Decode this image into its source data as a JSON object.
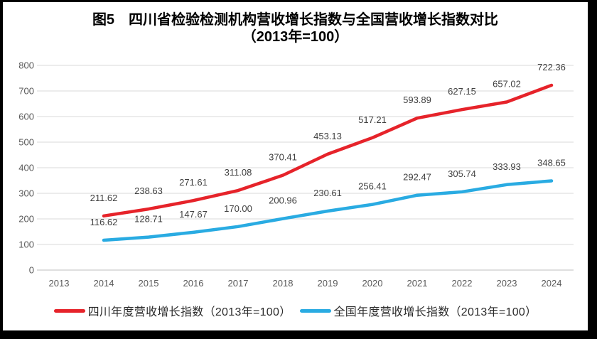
{
  "header": {
    "title_line1": "图5　四川省检验检测机构营收增长指数与全国营收增长指数对比",
    "title_line2": "（2013年=100）"
  },
  "colors": {
    "sichuan_line": "#e6232a",
    "national_line": "#29abe2",
    "grid": "#d9d9d9",
    "axis": "#bfbfbf",
    "tick_text": "#595959",
    "label_text": "#404040",
    "title_text": "#000000",
    "frame_border": "#000000"
  },
  "chart_data": {
    "type": "line",
    "title": "图5　四川省检验检测机构营收增长指数与全国营收增长指数对比（2013年=100）",
    "categories": [
      "2013",
      "2014",
      "2015",
      "2016",
      "2017",
      "2018",
      "2019",
      "2020",
      "2021",
      "2022",
      "2023",
      "2024"
    ],
    "series": [
      {
        "id": "sichuan",
        "name": "四川年度营收增长指数（2013年=100）",
        "color": "#e6232a",
        "values": [
          null,
          211.62,
          238.63,
          271.61,
          311.08,
          370.41,
          453.13,
          517.21,
          593.89,
          627.15,
          657.02,
          722.36
        ]
      },
      {
        "id": "national",
        "name": "全国年度营收增长指数（2013年=100）",
        "color": "#29abe2",
        "values": [
          null,
          116.62,
          128.71,
          147.67,
          170.0,
          200.96,
          230.61,
          256.41,
          292.47,
          305.74,
          333.93,
          348.65
        ]
      }
    ],
    "xlabel": "",
    "ylabel": "",
    "ylim": [
      0,
      800
    ],
    "ytick_step": 100,
    "grid": true,
    "data_labels": true,
    "label_decimals": 2,
    "legend_position": "bottom"
  }
}
